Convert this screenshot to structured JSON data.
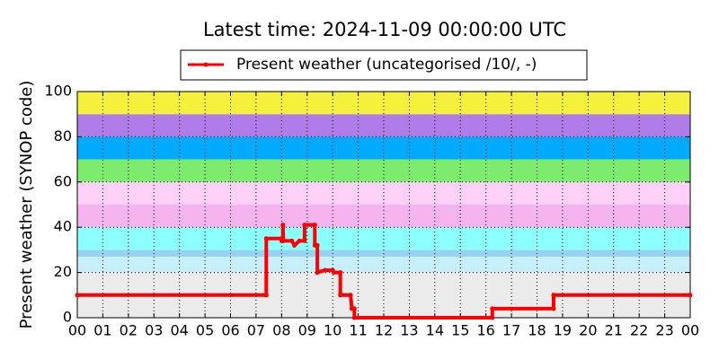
{
  "chart_data": {
    "type": "line",
    "title": "Latest time: 2024-11-09 00:00:00 UTC",
    "y_label": "Present weather (SYNOP code)",
    "xlim": [
      0,
      24
    ],
    "ylim": [
      0,
      100
    ],
    "xticks": [
      {
        "value": 0,
        "label": "00"
      },
      {
        "value": 1,
        "label": "01"
      },
      {
        "value": 2,
        "label": "02"
      },
      {
        "value": 3,
        "label": "03"
      },
      {
        "value": 4,
        "label": "04"
      },
      {
        "value": 5,
        "label": "05"
      },
      {
        "value": 6,
        "label": "06"
      },
      {
        "value": 7,
        "label": "07"
      },
      {
        "value": 8,
        "label": "08"
      },
      {
        "value": 9,
        "label": "09"
      },
      {
        "value": 10,
        "label": "10"
      },
      {
        "value": 11,
        "label": "11"
      },
      {
        "value": 12,
        "label": "12"
      },
      {
        "value": 13,
        "label": "13"
      },
      {
        "value": 14,
        "label": "14"
      },
      {
        "value": 15,
        "label": "15"
      },
      {
        "value": 16,
        "label": "16"
      },
      {
        "value": 17,
        "label": "17"
      },
      {
        "value": 18,
        "label": "18"
      },
      {
        "value": 19,
        "label": "19"
      },
      {
        "value": 20,
        "label": "20"
      },
      {
        "value": 21,
        "label": "21"
      },
      {
        "value": 22,
        "label": "22"
      },
      {
        "value": 23,
        "label": "23"
      },
      {
        "value": 24,
        "label": "00"
      }
    ],
    "yticks": [
      0,
      20,
      40,
      60,
      80,
      100
    ],
    "grid": true,
    "legend_position": "top",
    "bands": [
      {
        "from": 0,
        "to": 20,
        "color": "#ebebeb"
      },
      {
        "from": 20,
        "to": 27,
        "color": "#c8efff"
      },
      {
        "from": 27,
        "to": 30,
        "color": "#96d2f2"
      },
      {
        "from": 30,
        "to": 40,
        "color": "#8cffff"
      },
      {
        "from": 40,
        "to": 50,
        "color": "#f5b4ee"
      },
      {
        "from": 50,
        "to": 60,
        "color": "#ffd0f8"
      },
      {
        "from": 60,
        "to": 70,
        "color": "#7deb6e"
      },
      {
        "from": 70,
        "to": 80,
        "color": "#00aaff"
      },
      {
        "from": 80,
        "to": 90,
        "color": "#b07de8"
      },
      {
        "from": 90,
        "to": 100,
        "color": "#f5f03c"
      }
    ],
    "x": [
      0,
      7.4,
      7.4,
      8.0,
      8.0,
      8.05,
      8.05,
      8.07,
      8.4,
      8.5,
      8.7,
      8.9,
      8.9,
      9.3,
      9.3,
      9.4,
      9.4,
      9.7,
      10.0,
      10.05,
      10.3,
      10.3,
      10.7,
      10.75,
      10.85,
      10.85,
      16.25,
      16.25,
      18.65,
      18.65,
      24
    ],
    "series": [
      {
        "name": "Present weather (uncategorised /10/, -)",
        "color": "#ff0000",
        "values": [
          10,
          10,
          35,
          35,
          34,
          34,
          41,
          34,
          34,
          32,
          34,
          34,
          41,
          41,
          32,
          32,
          20,
          21,
          21,
          20,
          20,
          10,
          10,
          4,
          4,
          0,
          0,
          4,
          4,
          10,
          10
        ]
      }
    ]
  }
}
